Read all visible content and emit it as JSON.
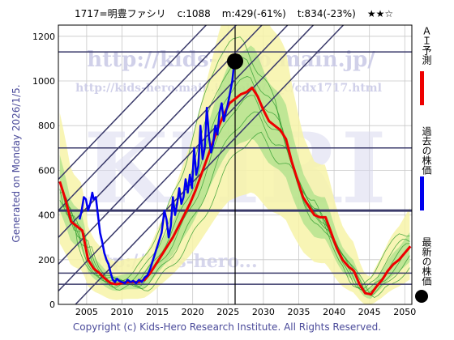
{
  "header": {
    "code_name": "1717=明豊ファシリ",
    "current": "c:1088",
    "min_forecast": "m:429(-61%)",
    "target": "t:834(-23%)",
    "rating": "★★☆"
  },
  "side_text": "Generated on Monday 2026/1/5.",
  "copyright": "Copyright (c) Kids-Hero Research Institute. All Rights Reserved.",
  "watermarks": {
    "url_large": "http://kids-hero.main.jp/",
    "url_small": "http://kids-hero.main.jp/kabu/..._c/cdx1717.html",
    "bottom": "http://kids-hero...",
    "big_letters": "KHRI"
  },
  "legend": {
    "ai_forecast": "ＡＩ予測",
    "past_price": "過去の株価",
    "latest_price": "最新の株価"
  },
  "colors": {
    "ai": "#ee0000",
    "past": "#0000ee",
    "latest": "#000000",
    "band_fill": "#f7f3a8",
    "band_green": "#8fd87a",
    "green_lines": "#2c9a2c",
    "hlines": "#3a3a6a",
    "diag": "#3a3a6a",
    "grid": "#c8c8c8",
    "text_blue": "#4a4a9a"
  },
  "chart_data": {
    "type": "line",
    "title": "1717=明豊ファシリ",
    "xlim": [
      2001,
      2051
    ],
    "ylim": [
      0,
      1250
    ],
    "x_ticks": [
      2005,
      2010,
      2015,
      2020,
      2025,
      2030,
      2035,
      2040,
      2045,
      2050
    ],
    "y_ticks": [
      0,
      200,
      400,
      600,
      800,
      1000,
      1200
    ],
    "horizontal_levels": [
      90,
      140,
      420,
      700,
      1130
    ],
    "vertical_marker_x": 2026,
    "latest_point": {
      "x": 2026,
      "y": 1088
    },
    "series": [
      {
        "name": "過去の株価",
        "color": "#0000ee",
        "points": [
          [
            2004.0,
            380
          ],
          [
            2004.3,
            420
          ],
          [
            2004.6,
            480
          ],
          [
            2004.9,
            470
          ],
          [
            2005.2,
            420
          ],
          [
            2005.5,
            450
          ],
          [
            2005.8,
            500
          ],
          [
            2006.0,
            470
          ],
          [
            2006.3,
            480
          ],
          [
            2006.6,
            400
          ],
          [
            2006.9,
            320
          ],
          [
            2007.2,
            280
          ],
          [
            2007.5,
            230
          ],
          [
            2007.8,
            200
          ],
          [
            2008.1,
            180
          ],
          [
            2008.4,
            140
          ],
          [
            2008.7,
            110
          ],
          [
            2009.0,
            100
          ],
          [
            2009.3,
            115
          ],
          [
            2009.6,
            105
          ],
          [
            2010.0,
            100
          ],
          [
            2010.4,
            95
          ],
          [
            2010.8,
            110
          ],
          [
            2011.2,
            100
          ],
          [
            2011.6,
            105
          ],
          [
            2012.0,
            95
          ],
          [
            2012.4,
            110
          ],
          [
            2012.8,
            100
          ],
          [
            2013.2,
            120
          ],
          [
            2013.6,
            130
          ],
          [
            2014.0,
            160
          ],
          [
            2014.4,
            200
          ],
          [
            2014.8,
            240
          ],
          [
            2015.2,
            280
          ],
          [
            2015.6,
            320
          ],
          [
            2016.0,
            420
          ],
          [
            2016.3,
            380
          ],
          [
            2016.6,
            300
          ],
          [
            2016.9,
            350
          ],
          [
            2017.2,
            480
          ],
          [
            2017.5,
            400
          ],
          [
            2017.8,
            450
          ],
          [
            2018.1,
            520
          ],
          [
            2018.4,
            450
          ],
          [
            2018.7,
            480
          ],
          [
            2019.0,
            560
          ],
          [
            2019.3,
            500
          ],
          [
            2019.6,
            580
          ],
          [
            2019.9,
            520
          ],
          [
            2020.2,
            700
          ],
          [
            2020.5,
            580
          ],
          [
            2020.8,
            620
          ],
          [
            2021.1,
            800
          ],
          [
            2021.4,
            650
          ],
          [
            2021.7,
            700
          ],
          [
            2022.0,
            880
          ],
          [
            2022.3,
            750
          ],
          [
            2022.6,
            680
          ],
          [
            2022.9,
            720
          ],
          [
            2023.2,
            800
          ],
          [
            2023.5,
            760
          ],
          [
            2023.8,
            860
          ],
          [
            2024.1,
            900
          ],
          [
            2024.4,
            820
          ],
          [
            2024.7,
            860
          ],
          [
            2025.0,
            900
          ],
          [
            2025.3,
            950
          ],
          [
            2025.6,
            1000
          ],
          [
            2025.9,
            1088
          ]
        ]
      },
      {
        "name": "ＡＩ予測",
        "color": "#ee0000",
        "points": [
          [
            2001.2,
            550
          ],
          [
            2002.0,
            470
          ],
          [
            2002.8,
            370
          ],
          [
            2003.6,
            350
          ],
          [
            2004.4,
            330
          ],
          [
            2005.2,
            200
          ],
          [
            2006.0,
            160
          ],
          [
            2006.8,
            140
          ],
          [
            2007.6,
            115
          ],
          [
            2008.4,
            95
          ],
          [
            2009.2,
            90
          ],
          [
            2010.0,
            95
          ],
          [
            2010.8,
            100
          ],
          [
            2011.6,
            100
          ],
          [
            2012.4,
            100
          ],
          [
            2013.2,
            110
          ],
          [
            2014.0,
            140
          ],
          [
            2014.8,
            180
          ],
          [
            2015.6,
            220
          ],
          [
            2016.4,
            260
          ],
          [
            2017.2,
            300
          ],
          [
            2018.0,
            350
          ],
          [
            2018.8,
            400
          ],
          [
            2019.6,
            450
          ],
          [
            2020.4,
            510
          ],
          [
            2021.2,
            580
          ],
          [
            2022.0,
            650
          ],
          [
            2022.8,
            720
          ],
          [
            2023.6,
            790
          ],
          [
            2024.4,
            850
          ],
          [
            2025.2,
            900
          ],
          [
            2026.0,
            920
          ],
          [
            2026.8,
            940
          ],
          [
            2027.6,
            950
          ],
          [
            2028.4,
            970
          ],
          [
            2029.2,
            930
          ],
          [
            2030.0,
            870
          ],
          [
            2030.8,
            820
          ],
          [
            2031.6,
            800
          ],
          [
            2032.4,
            780
          ],
          [
            2033.2,
            740
          ],
          [
            2034.0,
            640
          ],
          [
            2034.8,
            560
          ],
          [
            2035.6,
            480
          ],
          [
            2036.4,
            440
          ],
          [
            2037.2,
            400
          ],
          [
            2038.0,
            390
          ],
          [
            2038.8,
            390
          ],
          [
            2039.6,
            320
          ],
          [
            2040.4,
            250
          ],
          [
            2041.2,
            200
          ],
          [
            2042.0,
            170
          ],
          [
            2042.8,
            150
          ],
          [
            2043.6,
            90
          ],
          [
            2044.4,
            50
          ],
          [
            2045.2,
            45
          ],
          [
            2046.0,
            80
          ],
          [
            2046.8,
            110
          ],
          [
            2047.6,
            150
          ],
          [
            2048.4,
            180
          ],
          [
            2049.2,
            200
          ],
          [
            2050.0,
            230
          ],
          [
            2050.8,
            260
          ]
        ]
      }
    ]
  }
}
